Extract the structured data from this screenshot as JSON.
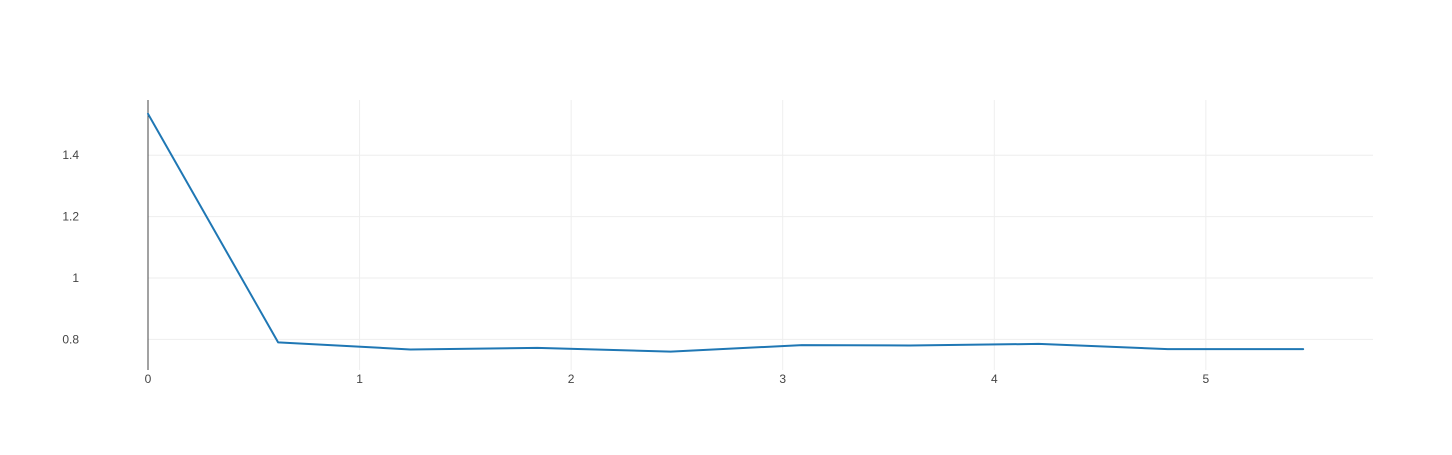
{
  "chart_data": {
    "type": "line",
    "title": "",
    "xlabel": "",
    "ylabel": "",
    "xlim": [
      0,
      5.79
    ],
    "ylim": [
      0.7,
      1.58
    ],
    "x_ticks": [
      0,
      1,
      2,
      3,
      4,
      5
    ],
    "y_ticks": [
      0.8,
      1,
      1.2,
      1.4
    ],
    "x_tick_labels": [
      "0",
      "1",
      "2",
      "3",
      "4",
      "5"
    ],
    "y_tick_labels": [
      "0.8",
      "1",
      "1.2",
      "1.4"
    ],
    "grid": true,
    "series": [
      {
        "color": "#1f77b4",
        "x": [
          0,
          0.615,
          1.24,
          1.84,
          2.47,
          3.09,
          3.6,
          4.21,
          4.82,
          5.46
        ],
        "y": [
          1.535,
          0.79,
          0.767,
          0.772,
          0.76,
          0.781,
          0.78,
          0.785,
          0.768,
          0.768
        ]
      }
    ]
  }
}
